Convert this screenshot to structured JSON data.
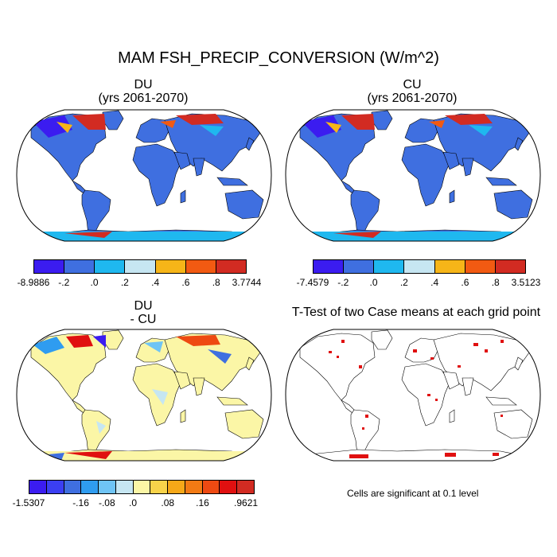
{
  "title": "MAM FSH_PRECIP_CONVERSION (W/m^2)",
  "panels": {
    "du": {
      "title": "DU",
      "subtitle": "(yrs 2061-2070)"
    },
    "cu": {
      "title": "CU",
      "subtitle": "(yrs 2061-2070)"
    },
    "diff": {
      "title": "DU",
      "subtitle": "- CU"
    },
    "ttest": {
      "title": "T-Test of two Case means at each grid point"
    }
  },
  "colorbars": {
    "du": {
      "colors": [
        "#3b1cf0",
        "#3f6fe0",
        "#1fb8ef",
        "#c6e6f2",
        "#f6b518",
        "#f25a12",
        "#d22b22"
      ],
      "labels": [
        "-8.9886",
        "-.2",
        ".0",
        ".2",
        ".4",
        ".6",
        ".8",
        "3.7744"
      ]
    },
    "cu": {
      "colors": [
        "#3b1cf0",
        "#3f6fe0",
        "#1fb8ef",
        "#c6e6f2",
        "#f6b518",
        "#f25a12",
        "#d22b22"
      ],
      "labels": [
        "-7.4579",
        "-.2",
        ".0",
        ".2",
        ".4",
        ".6",
        ".8",
        "3.5123"
      ]
    },
    "diff": {
      "colors": [
        "#3b1cf0",
        "#3b3ff2",
        "#3f6fe0",
        "#2f9cf0",
        "#6fc4f5",
        "#c6e6f2",
        "#fbf6a6",
        "#f8d34a",
        "#f6a818",
        "#f27a14",
        "#ee4a12",
        "#e01010",
        "#d22b22"
      ],
      "labels": [
        "-1.5307",
        "-.16",
        "-.08",
        ".0",
        ".08",
        ".16",
        ".9621"
      ]
    }
  },
  "note": "Cells are significant at 0.1 level",
  "map_style": {
    "ocean": "#ffffff",
    "outline": "#000000",
    "land_du_cu": "#3f6fe0",
    "land_diff": "#fbf6a6",
    "ttest_sig": "#e01010"
  }
}
